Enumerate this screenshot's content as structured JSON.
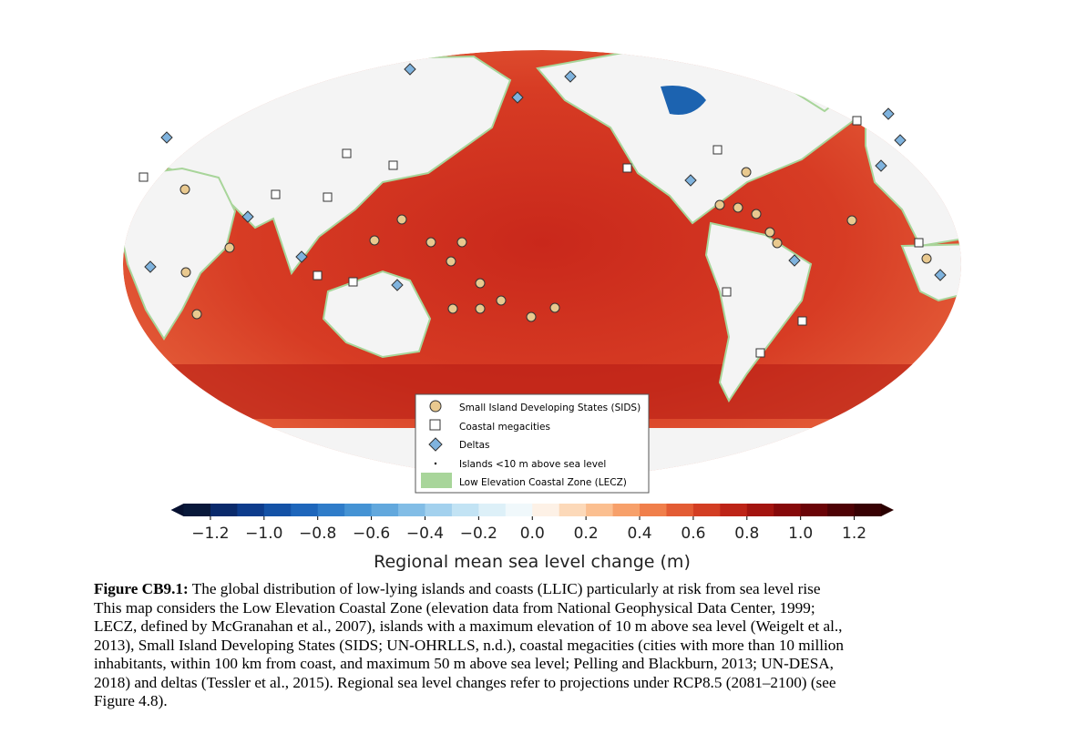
{
  "legend": {
    "entries": [
      "Small Island Developing States (SIDS)",
      "Coastal megacities",
      "Deltas",
      "Islands <10 m above sea level",
      "Low Elevation Coastal Zone (LECZ)"
    ]
  },
  "colorbar": {
    "label": "Regional mean sea level change (m)",
    "lim": [
      -1.3,
      1.3
    ],
    "ticks": [
      {
        "value": -1.2,
        "label": "−1.2"
      },
      {
        "value": -1.0,
        "label": "−1.0"
      },
      {
        "value": -0.8,
        "label": "−0.8"
      },
      {
        "value": -0.6,
        "label": "−0.6"
      },
      {
        "value": -0.4,
        "label": "−0.4"
      },
      {
        "value": -0.2,
        "label": "−0.2"
      },
      {
        "value": 0,
        "label": "0.0"
      },
      0.2,
      0.4,
      0.6,
      0.8,
      {
        "value": 1.0,
        "label": "1.0"
      },
      1.2
    ],
    "colors": [
      "#08183a",
      "#0a2a6b",
      "#0d3c8c",
      "#1452a6",
      "#1e66bb",
      "#2f7cc9",
      "#4593d4",
      "#62a8dd",
      "#82bde6",
      "#a3d1ee",
      "#c2e3f4",
      "#ddf0f8",
      "#f0f8fb",
      "#fdf1e6",
      "#fcd9b9",
      "#fbbf90",
      "#f7a06a",
      "#f07f4b",
      "#e35c34",
      "#d33e23",
      "#bd2417",
      "#a3140f",
      "#86090a",
      "#6a0407",
      "#4e0205",
      "#380103"
    ],
    "under_color": "#061030",
    "over_color": "#2a0000"
  },
  "caption": {
    "label": "Figure CB9.1:",
    "lines": [
      "The global distribution of low-lying islands and coasts (LLIC) particularly at risk from sea level rise",
      "This map considers the Low Elevation Coastal Zone (elevation data from National Geophysical Data Center, 1999;",
      "LECZ, defined by McGranahan et al., 2007), islands with a maximum elevation of 10 m above sea level (Weigelt et al.,",
      "2013), Small Island Developing States (SIDS; UN-OHRLLS, n.d.), coastal megacities (cities with more than 10 million",
      "inhabitants, within 100 km from coast, and maximum 50 m above sea level; Pelling and Blackburn, 2013; UN-DESA,",
      "2018) and deltas (Tessler et al., 2015). Regional sea level changes refer to projections under RCP8.5 (2081–2100) (see",
      "Figure 4.8)."
    ]
  }
}
